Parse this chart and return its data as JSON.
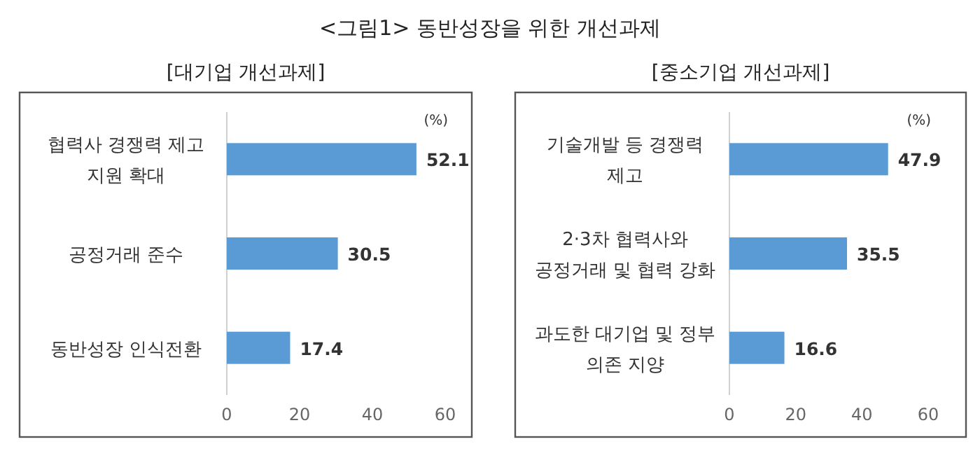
{
  "chart_data": [
    {
      "type": "bar",
      "orientation": "horizontal",
      "title": "<그림1> 동반성장을 위한 개선과제",
      "subtitle": "[대기업 개선과제]",
      "xlabel": "(%)",
      "categories": [
        "협력사 경쟁력 제고 지원 확대",
        "공정거래 준수",
        "동반성장 인식전환"
      ],
      "values": [
        52.1,
        30.5,
        17.4
      ],
      "color": "#5b9bd5",
      "xlim": [
        0,
        60
      ],
      "xticks": [
        0,
        20,
        40,
        60
      ],
      "data_labels": true
    },
    {
      "type": "bar",
      "orientation": "horizontal",
      "subtitle": "[중소기업 개선과제]",
      "xlabel": "(%)",
      "categories": [
        "기술개발 등 경쟁력 제고",
        "2·3차 협력사와 공정거래 및 협력 강화",
        "과도한 대기업 및 정부 의존 지양"
      ],
      "values": [
        47.9,
        35.5,
        16.6
      ],
      "color": "#5b9bd5",
      "xlim": [
        0,
        60
      ],
      "xticks": [
        0,
        20,
        40,
        60
      ],
      "data_labels": true
    }
  ]
}
